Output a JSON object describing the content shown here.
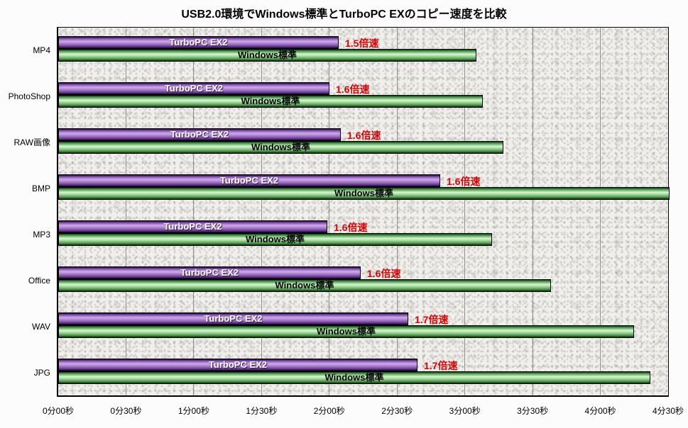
{
  "title": "USB2.0環境でWindows標準とTurboPC EXのコピー速度を比較",
  "chart_data": {
    "type": "bar",
    "orientation": "horizontal",
    "categories": [
      "MP4",
      "PhotoShop",
      "RAW画像",
      "BMP",
      "MP3",
      "Office",
      "WAV",
      "JPG"
    ],
    "series": [
      {
        "name": "TurboPC EX2",
        "color": "#9a6ec0",
        "values_seconds": [
          124,
          120,
          125,
          169,
          119,
          134,
          155,
          159
        ]
      },
      {
        "name": "Windows標準",
        "color": "#8fcf8a",
        "values_seconds": [
          185,
          188,
          197,
          270.5,
          192,
          218,
          255,
          262
        ]
      }
    ],
    "ratio_labels": [
      "1.5倍速",
      "1.6倍速",
      "1.6倍速",
      "1.6倍速",
      "1.6倍速",
      "1.6倍速",
      "1.7倍速",
      "1.7倍速"
    ],
    "x_ticks": [
      "0分00秒",
      "0分30秒",
      "1分00秒",
      "1分30秒",
      "2分00秒",
      "2分30秒",
      "3分00秒",
      "3分30秒",
      "4分00秒",
      "4分30秒"
    ],
    "x_axis_seconds_max": 270,
    "grid": true,
    "legend": "labels-on-bars",
    "colors": {
      "turbo_bar": "#9a6ec0",
      "windows_bar": "#8fcf8a",
      "ratio_text": "#e00000",
      "gridline": "#909090",
      "plot_border": "#000000",
      "plot_fill": "#f0efec",
      "background": "#fcfcfc"
    }
  }
}
